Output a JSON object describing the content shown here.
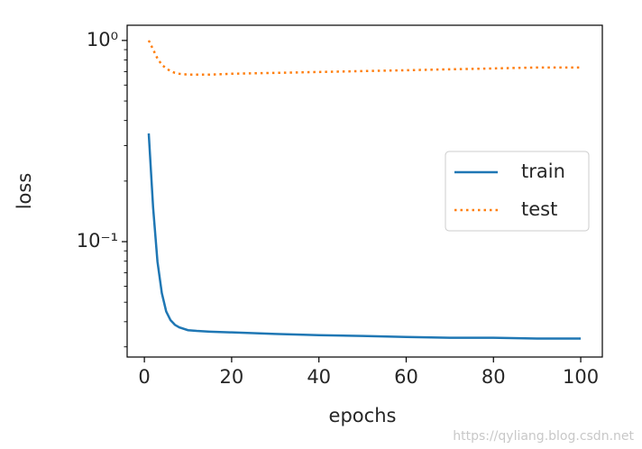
{
  "chart_data": {
    "type": "line",
    "x_label": "epochs",
    "y_label": "loss",
    "x": [
      1,
      2,
      3,
      4,
      5,
      6,
      7,
      8,
      10,
      12,
      15,
      20,
      30,
      40,
      50,
      60,
      70,
      80,
      90,
      100
    ],
    "series": [
      {
        "name": "train",
        "color": "#1f77b4",
        "style": "solid",
        "values": [
          0.345,
          0.148,
          0.0796,
          0.0555,
          0.045,
          0.0407,
          0.0386,
          0.0375,
          0.0363,
          0.036,
          0.0357,
          0.0354,
          0.0348,
          0.0343,
          0.034,
          0.0336,
          0.0333,
          0.0333,
          0.033,
          0.033
        ]
      },
      {
        "name": "test",
        "color": "#ff7f0e",
        "style": "dotted",
        "values": [
          1.0,
          0.902,
          0.814,
          0.757,
          0.726,
          0.704,
          0.69,
          0.683,
          0.676,
          0.676,
          0.676,
          0.683,
          0.69,
          0.697,
          0.704,
          0.711,
          0.719,
          0.726,
          0.734,
          0.734
        ]
      }
    ],
    "xlim": [
      -3.95,
      104.95
    ],
    "xticks": [
      0,
      20,
      40,
      60,
      80,
      100
    ],
    "ylim": [
      0.0267,
      1.19
    ],
    "y_scale": "log",
    "yticks": [
      {
        "value": 1,
        "label": "10⁰"
      },
      {
        "value": 0.1,
        "label": "10⁻¹"
      }
    ],
    "yticks_minor": [
      0.03,
      0.04,
      0.05,
      0.06,
      0.07,
      0.08,
      0.09,
      0.2,
      0.3,
      0.4,
      0.5,
      0.6,
      0.7,
      0.8,
      0.9
    ],
    "legend": "center right",
    "watermark": "https://qyliang.blog.csdn.net"
  }
}
